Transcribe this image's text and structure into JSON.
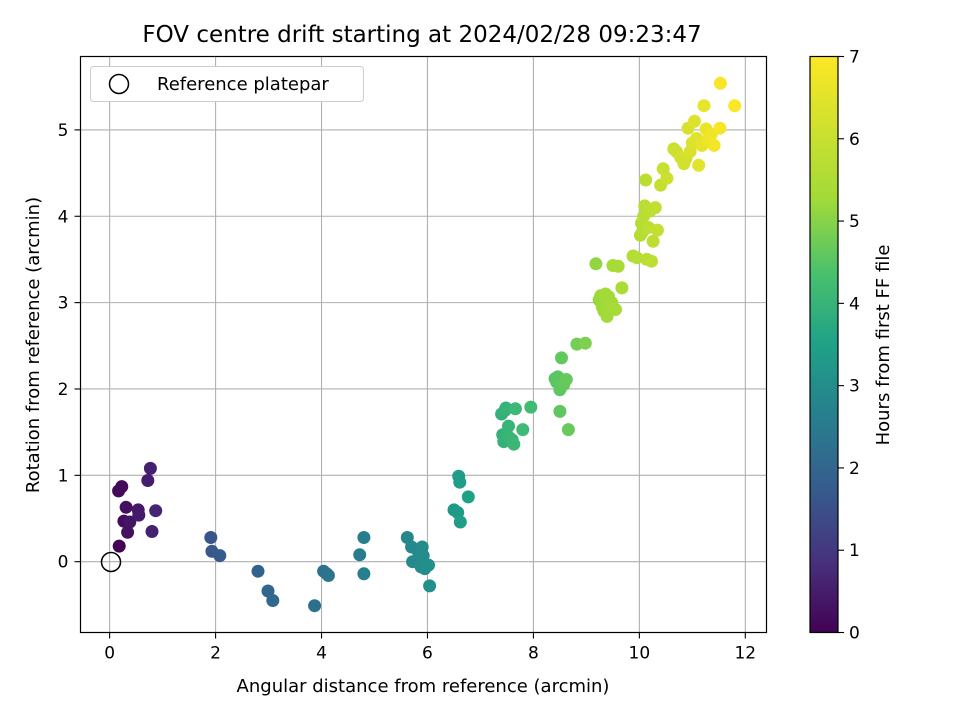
{
  "chart_data": {
    "type": "scatter",
    "title": "FOV centre drift starting at 2024/02/28 09:23:47",
    "xlabel": "Angular distance from reference (arcmin)",
    "ylabel": "Rotation from reference (arcmin)",
    "xlim": [
      -0.55,
      12.4
    ],
    "ylim": [
      -0.82,
      5.85
    ],
    "xticks": [
      0,
      2,
      4,
      6,
      8,
      10,
      12
    ],
    "yticks": [
      0,
      1,
      2,
      3,
      4,
      5
    ],
    "grid": true,
    "legend": {
      "position": "top-left",
      "entries": [
        "Reference platepar"
      ]
    },
    "colorbar": {
      "label": "Hours from first FF file",
      "min": 0,
      "max": 7,
      "ticks": [
        0,
        1,
        2,
        3,
        4,
        5,
        6,
        7
      ],
      "colormap": "viridis"
    },
    "reference_point": {
      "x": 0,
      "y": 0,
      "label": "Reference platepar"
    },
    "series": [
      {
        "x_y_hours": [
          [
            0.18,
            0.18,
            0.05
          ],
          [
            0.17,
            0.82,
            0.1
          ],
          [
            0.23,
            0.87,
            0.15
          ],
          [
            0.27,
            0.47,
            0.2
          ],
          [
            0.31,
            0.63,
            0.25
          ],
          [
            0.34,
            0.34,
            0.3
          ],
          [
            0.38,
            0.46,
            0.35
          ],
          [
            0.54,
            0.6,
            0.4
          ],
          [
            0.55,
            0.54,
            0.45
          ],
          [
            0.72,
            0.94,
            0.5
          ],
          [
            0.77,
            1.08,
            0.55
          ],
          [
            0.8,
            0.35,
            0.6
          ],
          [
            0.87,
            0.59,
            0.65
          ],
          [
            1.91,
            0.28,
            1.6
          ],
          [
            1.93,
            0.12,
            1.65
          ],
          [
            2.08,
            0.07,
            1.7
          ],
          [
            2.8,
            -0.11,
            1.9
          ],
          [
            2.99,
            -0.34,
            2.0
          ],
          [
            3.08,
            -0.45,
            2.05
          ],
          [
            3.87,
            -0.51,
            2.25
          ],
          [
            4.04,
            -0.11,
            2.3
          ],
          [
            4.1,
            -0.14,
            2.35
          ],
          [
            4.13,
            -0.16,
            2.4
          ],
          [
            4.72,
            0.08,
            2.55
          ],
          [
            4.8,
            -0.14,
            2.6
          ],
          [
            4.8,
            0.28,
            2.62
          ],
          [
            5.62,
            0.28,
            2.8
          ],
          [
            5.7,
            0.17,
            2.85
          ],
          [
            5.72,
            0.0,
            2.88
          ],
          [
            5.83,
            0.11,
            2.9
          ],
          [
            5.86,
            0.03,
            2.92
          ],
          [
            5.88,
            -0.06,
            2.94
          ],
          [
            5.9,
            0.17,
            2.96
          ],
          [
            5.92,
            0.07,
            2.98
          ],
          [
            5.95,
            -0.08,
            3.0
          ],
          [
            5.98,
            -0.05,
            3.02
          ],
          [
            6.02,
            -0.04,
            3.04
          ],
          [
            6.04,
            -0.28,
            3.06
          ],
          [
            6.5,
            0.6,
            3.3
          ],
          [
            6.57,
            0.57,
            3.35
          ],
          [
            6.59,
            0.99,
            3.38
          ],
          [
            6.61,
            0.92,
            3.4
          ],
          [
            6.62,
            0.46,
            3.42
          ],
          [
            6.77,
            0.75,
            3.5
          ],
          [
            7.4,
            1.71,
            3.9
          ],
          [
            7.42,
            1.47,
            3.92
          ],
          [
            7.44,
            1.39,
            3.94
          ],
          [
            7.46,
            1.75,
            3.96
          ],
          [
            7.48,
            1.78,
            3.98
          ],
          [
            7.5,
            1.47,
            4.0
          ],
          [
            7.53,
            1.57,
            4.02
          ],
          [
            7.56,
            1.43,
            4.04
          ],
          [
            7.6,
            1.41,
            4.06
          ],
          [
            7.63,
            1.36,
            4.08
          ],
          [
            7.66,
            1.77,
            4.1
          ],
          [
            7.8,
            1.53,
            4.15
          ],
          [
            7.95,
            1.79,
            4.2
          ],
          [
            8.41,
            2.12,
            4.5
          ],
          [
            8.44,
            2.08,
            4.52
          ],
          [
            8.46,
            2.14,
            4.54
          ],
          [
            8.48,
            2.1,
            4.56
          ],
          [
            8.5,
            1.99,
            4.58
          ],
          [
            8.5,
            1.74,
            4.6
          ],
          [
            8.53,
            2.36,
            4.62
          ],
          [
            8.57,
            2.05,
            4.64
          ],
          [
            8.62,
            2.11,
            4.66
          ],
          [
            8.66,
            1.53,
            4.68
          ],
          [
            8.82,
            2.52,
            4.8
          ],
          [
            8.98,
            2.53,
            4.9
          ],
          [
            9.18,
            3.45,
            5.1
          ],
          [
            9.24,
            3.03,
            5.15
          ],
          [
            9.27,
            3.08,
            5.2
          ],
          [
            9.3,
            2.95,
            5.22
          ],
          [
            9.33,
            2.9,
            5.24
          ],
          [
            9.36,
            3.1,
            5.26
          ],
          [
            9.39,
            2.84,
            5.28
          ],
          [
            9.42,
            3.07,
            5.3
          ],
          [
            9.45,
            2.97,
            5.32
          ],
          [
            9.48,
            3.0,
            5.34
          ],
          [
            9.5,
            3.43,
            5.36
          ],
          [
            9.55,
            2.92,
            5.38
          ],
          [
            9.6,
            3.42,
            5.4
          ],
          [
            9.67,
            3.17,
            5.45
          ],
          [
            9.88,
            3.54,
            5.6
          ],
          [
            9.95,
            3.52,
            5.62
          ],
          [
            10.02,
            3.78,
            5.65
          ],
          [
            10.04,
            3.92,
            5.67
          ],
          [
            10.06,
            3.82,
            5.69
          ],
          [
            10.08,
            4.0,
            5.71
          ],
          [
            10.1,
            4.12,
            5.73
          ],
          [
            10.12,
            4.42,
            5.75
          ],
          [
            10.14,
            3.5,
            5.77
          ],
          [
            10.17,
            3.87,
            5.79
          ],
          [
            10.2,
            4.06,
            5.81
          ],
          [
            10.23,
            3.48,
            5.83
          ],
          [
            10.26,
            3.71,
            5.85
          ],
          [
            10.3,
            4.1,
            5.87
          ],
          [
            10.34,
            3.84,
            5.89
          ],
          [
            10.4,
            4.36,
            5.95
          ],
          [
            10.45,
            4.55,
            6.0
          ],
          [
            10.52,
            4.44,
            6.05
          ],
          [
            10.65,
            4.78,
            6.1
          ],
          [
            10.7,
            4.75,
            6.12
          ],
          [
            10.78,
            4.68,
            6.15
          ],
          [
            10.84,
            4.61,
            6.18
          ],
          [
            10.88,
            4.67,
            6.2
          ],
          [
            10.92,
            5.02,
            6.25
          ],
          [
            10.96,
            4.75,
            6.3
          ],
          [
            11.0,
            4.85,
            6.35
          ],
          [
            11.04,
            5.1,
            6.4
          ],
          [
            11.08,
            4.9,
            6.45
          ],
          [
            11.12,
            4.59,
            6.5
          ],
          [
            11.18,
            4.82,
            6.55
          ],
          [
            11.22,
            5.28,
            6.6
          ],
          [
            11.26,
            5.01,
            6.65
          ],
          [
            11.3,
            4.89,
            6.7
          ],
          [
            11.36,
            4.95,
            6.75
          ],
          [
            11.41,
            4.82,
            6.8
          ],
          [
            11.52,
            5.02,
            6.85
          ],
          [
            11.53,
            5.54,
            6.9
          ],
          [
            11.8,
            5.28,
            6.95
          ]
        ]
      }
    ]
  }
}
